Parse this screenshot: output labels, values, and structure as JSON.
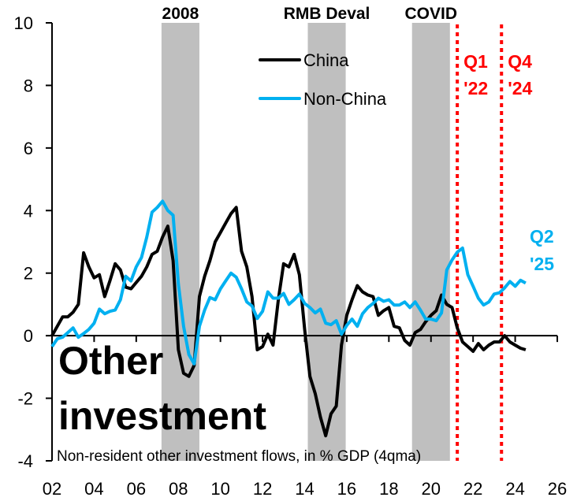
{
  "chart_data": {
    "type": "line",
    "title": "Other investment",
    "subtitle": "Non-resident other investment flows, in % GDP (4qma)",
    "xlabel": "",
    "ylabel": "",
    "ylim": [
      -4,
      10
    ],
    "yticks": [
      -4,
      -2,
      0,
      2,
      4,
      6,
      8,
      10
    ],
    "xlim": [
      2002.75,
      2026.75
    ],
    "xtick_labels": [
      "02",
      "04",
      "06",
      "08",
      "10",
      "12",
      "14",
      "16",
      "18",
      "20",
      "22",
      "24",
      "26"
    ],
    "x_start": 2002.75,
    "x_step": 0.25,
    "legend_position": "top-center",
    "series": [
      {
        "name": "China",
        "color": "#000000",
        "values": [
          0,
          0.3,
          0.6,
          0.6,
          0.75,
          1.0,
          2.65,
          2.2,
          1.85,
          1.95,
          1.25,
          1.75,
          2.3,
          2.1,
          1.55,
          1.5,
          1.7,
          1.9,
          2.2,
          2.6,
          2.7,
          3.15,
          3.5,
          2.4,
          -0.45,
          -1.2,
          -1.3,
          -0.95,
          1.25,
          1.9,
          2.4,
          3.0,
          3.3,
          3.6,
          3.9,
          4.1,
          2.7,
          2.2,
          1.25,
          -0.45,
          -0.35,
          0.05,
          -0.3,
          1.15,
          2.3,
          2.2,
          2.6,
          1.95,
          0.2,
          -1.3,
          -1.85,
          -2.6,
          -3.2,
          -2.5,
          -2.25,
          -0.3,
          0.65,
          1.15,
          1.6,
          1.4,
          1.3,
          1.25,
          0.65,
          0.8,
          0.9,
          0.3,
          0.25,
          -0.15,
          -0.3,
          0.1,
          0.2,
          0.45,
          0.65,
          0.8,
          1.3,
          1.0,
          0.9,
          0.25,
          -0.2,
          -0.35,
          -0.5,
          -0.25,
          -0.45,
          -0.3,
          -0.2,
          -0.2,
          0,
          -0.2,
          -0.3,
          -0.4,
          -0.45
        ]
      },
      {
        "name": "Non-China",
        "color": "#00B0F0",
        "values": [
          -0.35,
          -0.1,
          -0.05,
          0.1,
          0.25,
          -0.05,
          0.07,
          0.2,
          0.4,
          0.85,
          0.7,
          0.78,
          0.82,
          1.15,
          1.9,
          1.75,
          2.2,
          2.5,
          3.15,
          3.95,
          4.1,
          4.3,
          4.0,
          3.85,
          1.65,
          0.3,
          -0.6,
          -0.9,
          0.3,
          0.82,
          1.22,
          1.15,
          1.5,
          1.75,
          2.0,
          1.87,
          1.5,
          1.08,
          0.95,
          0.55,
          0.78,
          1.4,
          1.2,
          1.2,
          1.35,
          1.0,
          1.15,
          1.33,
          1.03,
          0.9,
          0.73,
          0.85,
          0.4,
          0.35,
          0.48,
          0.05,
          0.33,
          0.53,
          0.3,
          0.7,
          0.9,
          1.03,
          1.2,
          1.1,
          1.15,
          0.98,
          0.98,
          1.08,
          0.9,
          1.08,
          0.82,
          0.53,
          0.53,
          0.48,
          0.73,
          2.1,
          2.42,
          2.67,
          2.8,
          1.95,
          1.58,
          1.2,
          0.98,
          1.08,
          1.33,
          1.37,
          1.53,
          1.73,
          1.58,
          1.77,
          1.68
        ]
      }
    ],
    "shaded_periods": [
      {
        "label": "2008",
        "from": 2007.95,
        "to": 2009.75
      },
      {
        "label": "RMB Deval",
        "from": 2014.9,
        "to": 2016.7
      },
      {
        "label": "COVID",
        "from": 2019.85,
        "to": 2021.65
      }
    ],
    "vertical_markers": [
      {
        "label_line1": "Q1",
        "label_line2": "'22",
        "x": 2022.0,
        "color": "#FF0000"
      },
      {
        "label_line1": "Q4",
        "label_line2": "'24",
        "x": 2024.1,
        "color": "#FF0000"
      }
    ],
    "end_annotation": {
      "line1": "Q2",
      "line2": "'25",
      "color": "#00B0F0"
    },
    "shade_color": "#BFBFBF"
  }
}
